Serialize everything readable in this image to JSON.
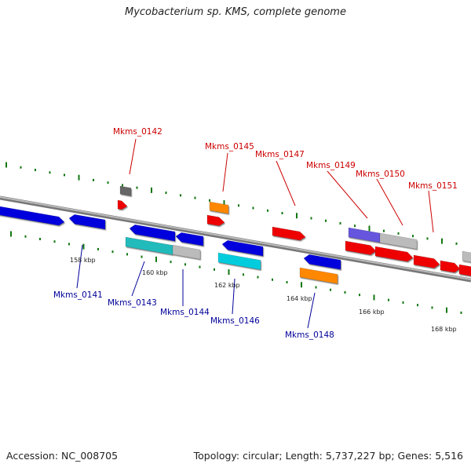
{
  "title": "Mycobacterium sp. KMS, complete genome",
  "footer": {
    "accession": "Accession: NC_008705",
    "summary": "Topology: circular; Length: 5,737,227 bp; Genes: 5,516"
  },
  "colors": {
    "forward_gene": "#ee0000",
    "reverse_gene": "#0000dd",
    "top_label": "#cc0000",
    "bottom_label": "#000099",
    "tick": "#117711",
    "backbone": "#888888"
  },
  "ruler": [
    "158 kbp",
    "160 kbp",
    "162 kbp",
    "164 kbp",
    "166 kbp",
    "168 kbp"
  ],
  "top_labels": [
    "Mkms_0142",
    "Mkms_0145",
    "Mkms_0147",
    "Mkms_0149",
    "Mkms_0150",
    "Mkms_0151"
  ],
  "bottom_labels": [
    "Mkms_0141",
    "Mkms_0143",
    "Mkms_0144",
    "Mkms_0146",
    "Mkms_0148"
  ]
}
